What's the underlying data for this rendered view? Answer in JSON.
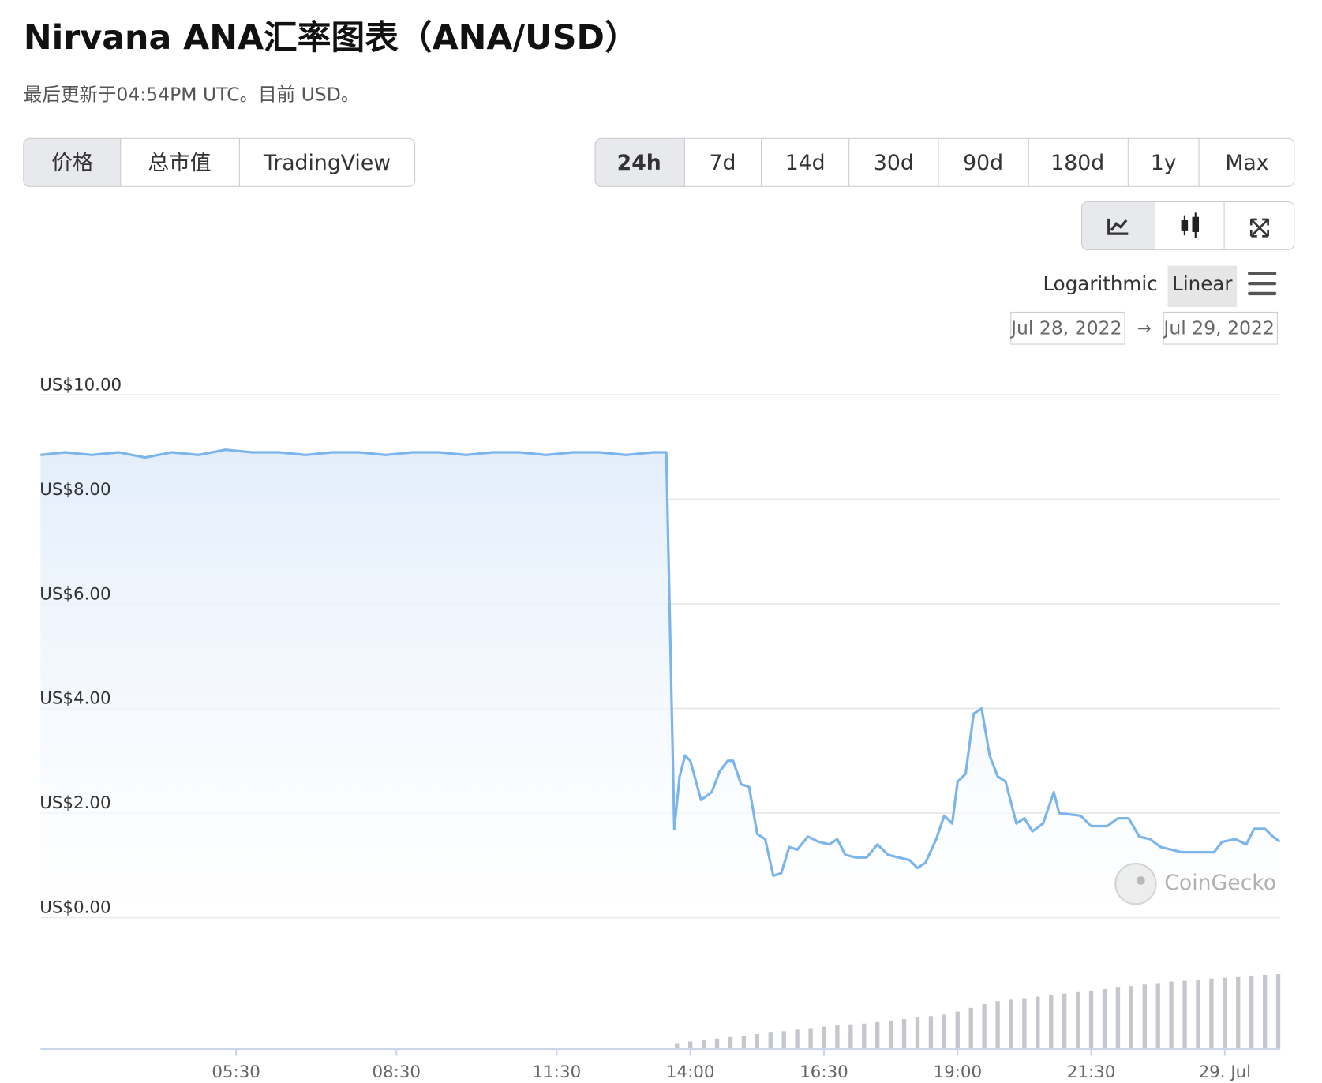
{
  "header": {
    "title": "Nirvana ANA汇率图表（ANA/USD）",
    "subtitle": "最后更新于04:54PM UTC。目前 USD。"
  },
  "tabs": [
    "价格",
    "总市值",
    "TradingView"
  ],
  "ranges": [
    "24h",
    "7d",
    "14d",
    "30d",
    "90d",
    "180d",
    "1y",
    "Max"
  ],
  "scale_options": [
    "Logarithmic",
    "Linear"
  ],
  "date_range": {
    "from": "Jul 28, 2022",
    "arrow": "→",
    "to": "Jul 29, 2022"
  },
  "watermark": "CoinGecko",
  "chart_data": {
    "type": "area",
    "color": "#7cb5ec",
    "grid": true,
    "x": [
      1.84,
      2.3,
      2.8,
      3.3,
      3.8,
      4.3,
      4.8,
      5.3,
      5.8,
      6.3,
      6.8,
      7.3,
      7.8,
      8.3,
      8.8,
      9.3,
      9.8,
      10.3,
      10.8,
      11.3,
      11.8,
      12.3,
      12.8,
      13.3,
      13.55,
      13.7,
      13.8,
      13.9,
      14.0,
      14.2,
      14.4,
      14.55,
      14.7,
      14.8,
      14.95,
      15.1,
      15.25,
      15.4,
      15.55,
      15.7,
      15.85,
      16.0,
      16.2,
      16.4,
      16.6,
      16.75,
      16.9,
      17.1,
      17.3,
      17.5,
      17.7,
      17.9,
      18.1,
      18.25,
      18.4,
      18.6,
      18.75,
      18.9,
      19.0,
      19.15,
      19.3,
      19.45,
      19.6,
      19.75,
      19.9,
      20.1,
      20.25,
      20.4,
      20.6,
      20.8,
      20.9,
      21.3,
      21.5,
      21.8,
      22.0,
      22.2,
      22.4,
      22.6,
      22.8,
      23.0,
      23.2,
      23.5,
      23.8,
      23.95,
      24.2,
      24.4,
      24.55,
      24.75,
      24.9,
      25.03
    ],
    "values": [
      8.85,
      8.9,
      8.85,
      8.9,
      8.8,
      8.9,
      8.85,
      8.95,
      8.9,
      8.9,
      8.85,
      8.9,
      8.9,
      8.85,
      8.9,
      8.9,
      8.85,
      8.9,
      8.9,
      8.85,
      8.9,
      8.9,
      8.85,
      8.9,
      8.9,
      1.7,
      2.7,
      3.1,
      3.0,
      2.25,
      2.4,
      2.8,
      3.0,
      3.0,
      2.55,
      2.5,
      1.6,
      1.5,
      0.8,
      0.85,
      1.35,
      1.3,
      1.55,
      1.45,
      1.4,
      1.5,
      1.2,
      1.15,
      1.15,
      1.4,
      1.2,
      1.15,
      1.1,
      0.95,
      1.05,
      1.5,
      1.95,
      1.8,
      2.6,
      2.75,
      3.9,
      4.0,
      3.1,
      2.7,
      2.6,
      1.8,
      1.9,
      1.65,
      1.8,
      2.4,
      2.0,
      1.95,
      1.75,
      1.75,
      1.9,
      1.9,
      1.55,
      1.5,
      1.35,
      1.3,
      1.25,
      1.25,
      1.25,
      1.45,
      1.5,
      1.4,
      1.7,
      1.7,
      1.55,
      1.45
    ],
    "xlim": [
      1.84,
      25.03
    ],
    "xticks": [
      {
        "value": 5.5,
        "label": "05:30"
      },
      {
        "value": 8.5,
        "label": "08:30"
      },
      {
        "value": 11.5,
        "label": "11:30"
      },
      {
        "value": 14,
        "label": "14:00"
      },
      {
        "value": 16.5,
        "label": "16:30"
      },
      {
        "value": 19,
        "label": "19:00"
      },
      {
        "value": 21.5,
        "label": "21:30"
      },
      {
        "value": 24,
        "label": "29. Jul"
      }
    ],
    "ylim": [
      0,
      10
    ],
    "yticks": [
      {
        "value": 0,
        "label": "US$0.00"
      },
      {
        "value": 2,
        "label": "US$2.00"
      },
      {
        "value": 4,
        "label": "US$4.00"
      },
      {
        "value": 6,
        "label": "US$6.00"
      },
      {
        "value": 8,
        "label": "US$8.00"
      },
      {
        "value": 10,
        "label": "US$10.00"
      }
    ],
    "volume": {
      "color": "#c4c7cc",
      "x": [
        13.75,
        14,
        14.25,
        14.5,
        14.75,
        15,
        15.25,
        15.5,
        15.75,
        16,
        16.25,
        16.5,
        16.75,
        17,
        17.25,
        17.5,
        17.75,
        18,
        18.25,
        18.5,
        18.75,
        19,
        19.25,
        19.5,
        19.75,
        20,
        20.25,
        20.5,
        20.75,
        21,
        21.25,
        21.5,
        21.75,
        22,
        22.25,
        22.5,
        22.75,
        23,
        23.25,
        23.5,
        23.75,
        24,
        24.25,
        24.5,
        24.75,
        25
      ],
      "values": [
        8,
        10,
        12,
        14,
        16,
        18,
        20,
        22,
        24,
        26,
        28,
        30,
        32,
        33,
        34,
        36,
        38,
        40,
        42,
        44,
        46,
        50,
        55,
        60,
        64,
        66,
        68,
        70,
        72,
        74,
        76,
        78,
        80,
        82,
        84,
        86,
        88,
        90,
        91,
        92,
        94,
        95,
        96,
        98,
        99,
        100
      ]
    }
  }
}
